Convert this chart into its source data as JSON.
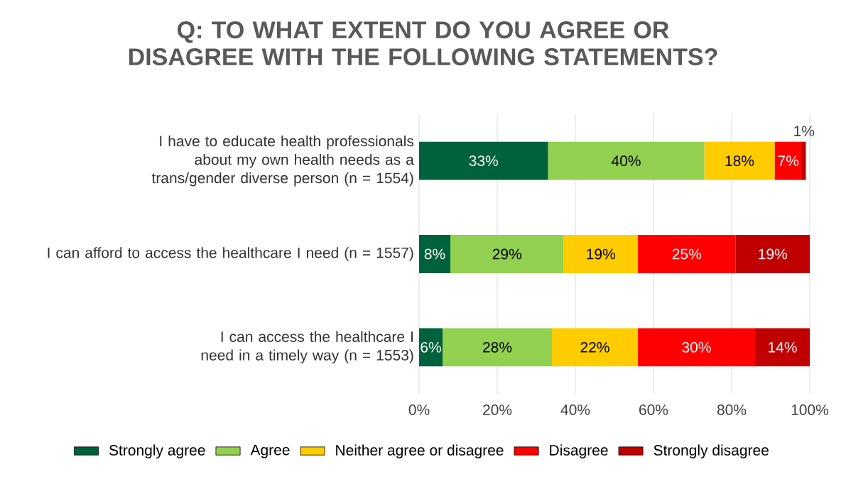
{
  "chart_data": {
    "type": "bar",
    "orientation": "horizontal",
    "stacked": true,
    "title": "Q: TO WHAT EXTENT DO YOU AGREE OR DISAGREE WITH THE FOLLOWING STATEMENTS?",
    "categories": [
      "I have to educate health professionals about my own health needs as a trans/gender diverse person (n = 1554)",
      "I can afford to access the healthcare I need (n = 1557)",
      "I can access the healthcare I need in a timely way (n = 1553)"
    ],
    "series": [
      {
        "name": "Strongly agree",
        "color": "#00613d",
        "values": [
          33,
          8,
          6
        ],
        "value_labels": [
          "33%",
          "8%",
          "6%"
        ]
      },
      {
        "name": "Agree",
        "color": "#92d050",
        "values": [
          40,
          29,
          28
        ],
        "value_labels": [
          "40%",
          "29%",
          "28%"
        ]
      },
      {
        "name": "Neither agree or disagree",
        "color": "#ffcc00",
        "values": [
          18,
          19,
          22
        ],
        "value_labels": [
          "18%",
          "19%",
          "22%"
        ]
      },
      {
        "name": "Disagree",
        "color": "#ff0000",
        "values": [
          7,
          25,
          30
        ],
        "value_labels": [
          "7%",
          "25%",
          "30%"
        ]
      },
      {
        "name": "Strongly disagree",
        "color": "#c00000",
        "values": [
          1,
          19,
          14
        ],
        "value_labels": [
          "1%",
          "19%",
          "14%"
        ]
      }
    ],
    "xlim": [
      0,
      100
    ],
    "xticks": [
      {
        "value": 0,
        "label": "0%"
      },
      {
        "value": 20,
        "label": "20%"
      },
      {
        "value": 40,
        "label": "40%"
      },
      {
        "value": 60,
        "label": "60%"
      },
      {
        "value": 80,
        "label": "80%"
      },
      {
        "value": 100,
        "label": "100%"
      }
    ],
    "grid": "x",
    "legend": "bottom"
  }
}
